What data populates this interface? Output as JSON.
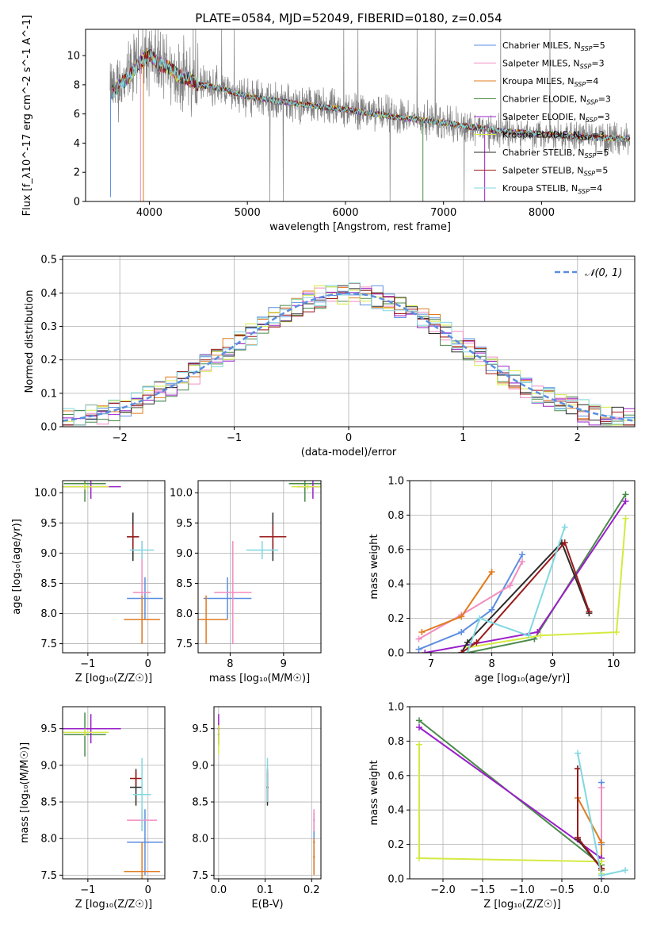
{
  "title": "PLATE=0584, MJD=52049, FIBERID=0180, z=0.054",
  "models": [
    {
      "name": "Chabrier MILES",
      "n": "5",
      "color": "#5b8ee0"
    },
    {
      "name": "Salpeter MILES",
      "n": "3",
      "color": "#f28cc0"
    },
    {
      "name": "Kroupa MILES",
      "n": "4",
      "color": "#e07b20"
    },
    {
      "name": "Chabrier ELODIE",
      "n": "3",
      "color": "#4a8a4a"
    },
    {
      "name": "Salpeter ELODIE",
      "n": "3",
      "color": "#9a20c8"
    },
    {
      "name": "Kroupa ELODIE",
      "n": "3",
      "color": "#d4ea40"
    },
    {
      "name": "Chabrier STELIB",
      "n": "5",
      "color": "#2a2a2a"
    },
    {
      "name": "Salpeter STELIB",
      "n": "5",
      "color": "#9a1a1a"
    },
    {
      "name": "Kroupa STELIB",
      "n": "4",
      "color": "#80d8e0"
    }
  ],
  "chart_data": [
    {
      "id": "spectrum",
      "type": "line",
      "xlabel": "wavelength [Angstrom, rest frame]",
      "ylabel": "Flux [f_λ10^-17 erg cm^-2 s^-1 A^-1]",
      "xlim": [
        3350,
        8950
      ],
      "ylim": [
        0,
        11.8
      ],
      "xticks": [
        4000,
        5000,
        6000,
        7000,
        8000
      ],
      "yticks": [
        0,
        2,
        4,
        6,
        8,
        10
      ],
      "data_color": "#808080",
      "data_range": [
        3600,
        8900
      ],
      "model_continuum": {
        "x": [
          3600,
          3700,
          3800,
          3900,
          4000,
          4100,
          4200,
          4300,
          4400,
          4500,
          4700,
          5000,
          5500,
          6000,
          6500,
          7000,
          7500,
          8000,
          8500,
          8900
        ],
        "y": [
          7.3,
          8.0,
          8.6,
          9.5,
          10.1,
          9.4,
          9.2,
          8.6,
          8.4,
          8.0,
          7.8,
          7.2,
          6.7,
          6.3,
          5.8,
          5.4,
          4.9,
          4.6,
          4.4,
          4.3
        ]
      }
    },
    {
      "id": "residuals",
      "type": "step",
      "xlabel": "(data-model)/error",
      "ylabel": "Normed distribution",
      "xlim": [
        -2.5,
        2.5
      ],
      "ylim": [
        0,
        0.51
      ],
      "xticks": [
        -2,
        -1,
        0,
        1,
        2
      ],
      "yticks": [
        0.0,
        0.1,
        0.2,
        0.3,
        0.4,
        0.5
      ],
      "legend": "𝒩(0, 1)",
      "gaussian": {
        "mean": 0,
        "sigma": 1
      },
      "bin_width": 0.1
    },
    {
      "id": "age-vs-Z",
      "type": "errorbar",
      "xlabel": "Z [log₁₀(Z/Z☉)]",
      "ylabel": "age  [log₁₀(age/yr)]",
      "xlim": [
        -1.42,
        0.28
      ],
      "ylim": [
        7.35,
        10.2
      ],
      "xticks": [
        -1,
        0
      ],
      "yticks": [
        7.5,
        8.0,
        8.5,
        9.0,
        9.5,
        10.0
      ],
      "points": [
        {
          "m": 0,
          "x": -0.05,
          "xerr": 0.3,
          "y": 8.25,
          "yerr": 0.35
        },
        {
          "m": 1,
          "x": -0.1,
          "xerr": 0.15,
          "y": 8.35,
          "yerr": 0.85
        },
        {
          "m": 2,
          "x": -0.1,
          "xerr": 0.3,
          "y": 7.9,
          "yerr": 0.4
        },
        {
          "m": 3,
          "x": -1.05,
          "xerr": 0.35,
          "y": 10.15,
          "yerr": 0.3
        },
        {
          "m": 4,
          "x": -0.95,
          "xerr": 0.5,
          "y": 10.1,
          "yerr": 0.2
        },
        {
          "m": 5,
          "x": -1.05,
          "xerr": 0.4,
          "y": 10.1,
          "yerr": 0.05
        },
        {
          "m": 6,
          "x": -0.25,
          "xerr": 0.1,
          "y": 9.27,
          "yerr": 0.4
        },
        {
          "m": 7,
          "x": -0.25,
          "xerr": 0.1,
          "y": 9.27,
          "yerr": 0.2
        },
        {
          "m": 8,
          "x": -0.1,
          "xerr": 0.2,
          "y": 9.05,
          "yerr": 0.15
        }
      ]
    },
    {
      "id": "age-vs-mass",
      "type": "errorbar",
      "xlabel": "mass [log₁₀(M/M☉)]",
      "ylabel": "",
      "xlim": [
        7.4,
        9.7
      ],
      "ylim": [
        7.35,
        10.2
      ],
      "xticks": [
        8,
        9
      ],
      "yticks": [
        7.5,
        8.0,
        8.5,
        9.0,
        9.5,
        10.0
      ],
      "points": [
        {
          "m": 0,
          "x": 7.95,
          "xerr": 0.45,
          "y": 8.25,
          "yerr": 0.35
        },
        {
          "m": 1,
          "x": 8.05,
          "xerr": 0.35,
          "y": 8.35,
          "yerr": 0.85
        },
        {
          "m": 2,
          "x": 7.55,
          "xerr": 0.4,
          "y": 7.9,
          "yerr": 0.4
        },
        {
          "m": 3,
          "x": 9.4,
          "xerr": 0.3,
          "y": 10.15,
          "yerr": 0.3
        },
        {
          "m": 4,
          "x": 9.55,
          "xerr": 0.3,
          "y": 10.1,
          "yerr": 0.2
        },
        {
          "m": 5,
          "x": 9.45,
          "xerr": 0.3,
          "y": 10.1,
          "yerr": 0.05
        },
        {
          "m": 6,
          "x": 8.8,
          "xerr": 0.25,
          "y": 9.27,
          "yerr": 0.4
        },
        {
          "m": 7,
          "x": 8.8,
          "xerr": 0.25,
          "y": 9.27,
          "yerr": 0.2
        },
        {
          "m": 8,
          "x": 8.6,
          "xerr": 0.3,
          "y": 9.05,
          "yerr": 0.15
        }
      ]
    },
    {
      "id": "weight-vs-age",
      "type": "line",
      "xlabel": "age  [log₁₀(age/yr)]",
      "ylabel": "mass weight",
      "xlim": [
        6.65,
        10.35
      ],
      "ylim": [
        0,
        1.0
      ],
      "xticks": [
        7,
        8,
        9,
        10
      ],
      "yticks": [
        0.0,
        0.2,
        0.4,
        0.6,
        0.8,
        1.0
      ],
      "series": [
        {
          "m": 0,
          "x": [
            6.8,
            7.5,
            8.0,
            8.5
          ],
          "y": [
            0.02,
            0.12,
            0.25,
            0.57
          ]
        },
        {
          "m": 1,
          "x": [
            6.8,
            7.5,
            8.3,
            8.5
          ],
          "y": [
            0.08,
            0.22,
            0.39,
            0.53
          ]
        },
        {
          "m": 2,
          "x": [
            6.85,
            7.5,
            8.0
          ],
          "y": [
            0.12,
            0.21,
            0.47
          ]
        },
        {
          "m": 3,
          "x": [
            7.6,
            8.7,
            10.2
          ],
          "y": [
            0.0,
            0.08,
            0.92
          ]
        },
        {
          "m": 4,
          "x": [
            6.9,
            8.75,
            10.2
          ],
          "y": [
            0.0,
            0.12,
            0.88
          ]
        },
        {
          "m": 5,
          "x": [
            7.6,
            8.8,
            10.05,
            10.2
          ],
          "y": [
            0.03,
            0.1,
            0.12,
            0.78
          ]
        },
        {
          "m": 6,
          "x": [
            7.5,
            7.6,
            9.15,
            9.6
          ],
          "y": [
            0.0,
            0.06,
            0.64,
            0.23
          ]
        },
        {
          "m": 7,
          "x": [
            7.5,
            7.75,
            9.2,
            9.6
          ],
          "y": [
            0.0,
            0.06,
            0.64,
            0.24
          ]
        },
        {
          "m": 8,
          "x": [
            7.6,
            7.8,
            8.6,
            9.2
          ],
          "y": [
            0.0,
            0.2,
            0.1,
            0.73
          ]
        }
      ]
    },
    {
      "id": "mass-vs-Z",
      "type": "errorbar",
      "xlabel": "Z [log₁₀(Z/Z☉)]",
      "ylabel": "mass [log₁₀(M/M☉)]",
      "xlim": [
        -1.42,
        0.28
      ],
      "ylim": [
        7.45,
        9.8
      ],
      "xticks": [
        -1,
        0
      ],
      "yticks": [
        7.5,
        8.0,
        8.5,
        9.0,
        9.5
      ],
      "points": [
        {
          "m": 0,
          "x": -0.05,
          "xerr": 0.3,
          "y": 7.95,
          "yerr": 0.45
        },
        {
          "m": 1,
          "x": -0.1,
          "xerr": 0.25,
          "y": 8.25,
          "yerr": 0.15
        },
        {
          "m": 2,
          "x": -0.1,
          "xerr": 0.3,
          "y": 7.55,
          "yerr": 0.4
        },
        {
          "m": 3,
          "x": -1.05,
          "xerr": 0.35,
          "y": 9.42,
          "yerr": 0.3
        },
        {
          "m": 4,
          "x": -0.95,
          "xerr": 0.5,
          "y": 9.5,
          "yerr": 0.2
        },
        {
          "m": 5,
          "x": -1.05,
          "xerr": 0.4,
          "y": 9.45,
          "yerr": 0.05
        },
        {
          "m": 6,
          "x": -0.2,
          "xerr": 0.1,
          "y": 8.7,
          "yerr": 0.25
        },
        {
          "m": 7,
          "x": -0.2,
          "xerr": 0.1,
          "y": 8.82,
          "yerr": 0.1
        },
        {
          "m": 8,
          "x": -0.1,
          "xerr": 0.15,
          "y": 8.6,
          "yerr": 0.5
        }
      ]
    },
    {
      "id": "mass-vs-ebv",
      "type": "errorbar",
      "xlabel": "E(B-V)",
      "ylabel": "",
      "xlim": [
        -0.01,
        0.22
      ],
      "ylim": [
        7.45,
        9.8
      ],
      "xticks": [
        0.0,
        0.1,
        0.2
      ],
      "yticks": [
        7.5,
        8.0,
        8.5,
        9.0,
        9.5
      ],
      "points": [
        {
          "m": 0,
          "x": 0.205,
          "xerr": 0.002,
          "y": 7.95,
          "yerr": 0.4
        },
        {
          "m": 1,
          "x": 0.205,
          "xerr": 0.002,
          "y": 8.25,
          "yerr": 0.15
        },
        {
          "m": 2,
          "x": 0.205,
          "xerr": 0.002,
          "y": 7.75,
          "yerr": 0.25
        },
        {
          "m": 3,
          "x": 0.0,
          "xerr": 0.002,
          "y": 9.42,
          "yerr": 0.15
        },
        {
          "m": 4,
          "x": 0.0,
          "xerr": 0.002,
          "y": 9.5,
          "yerr": 0.2
        },
        {
          "m": 5,
          "x": 0.0,
          "xerr": 0.002,
          "y": 9.35,
          "yerr": 0.2
        },
        {
          "m": 6,
          "x": 0.105,
          "xerr": 0.002,
          "y": 8.7,
          "yerr": 0.25
        },
        {
          "m": 7,
          "x": 0.105,
          "xerr": 0.002,
          "y": 8.7,
          "yerr": 0.2
        },
        {
          "m": 8,
          "x": 0.105,
          "xerr": 0.002,
          "y": 8.8,
          "yerr": 0.3
        }
      ]
    },
    {
      "id": "weight-vs-Z",
      "type": "line",
      "xlabel": "Z [log₁₀(Z/Z☉)]",
      "ylabel": "mass weight",
      "xlim": [
        -2.42,
        0.42
      ],
      "ylim": [
        0,
        1.0
      ],
      "xticks": [
        -2.0,
        -1.5,
        -1.0,
        -0.5,
        0.0
      ],
      "yticks": [
        0.0,
        0.2,
        0.4,
        0.6,
        0.8,
        1.0
      ],
      "series": [
        {
          "m": 0,
          "x": [
            0.0,
            0.0,
            0.0
          ],
          "y": [
            0.56,
            0.2,
            0.02
          ]
        },
        {
          "m": 1,
          "x": [
            0.0,
            0.0
          ],
          "y": [
            0.53,
            0.02
          ]
        },
        {
          "m": 2,
          "x": [
            -0.3,
            0.0,
            0.0
          ],
          "y": [
            0.47,
            0.21,
            0.05
          ]
        },
        {
          "m": 3,
          "x": [
            -2.3,
            0.0,
            0.0
          ],
          "y": [
            0.92,
            0.08,
            0.0
          ]
        },
        {
          "m": 4,
          "x": [
            -2.3,
            0.0,
            0.0
          ],
          "y": [
            0.88,
            0.12,
            0.0
          ]
        },
        {
          "m": 5,
          "x": [
            -2.3,
            -2.3,
            0.0,
            0.0
          ],
          "y": [
            0.78,
            0.12,
            0.1,
            0.03
          ]
        },
        {
          "m": 6,
          "x": [
            -0.3,
            -0.3,
            0.0
          ],
          "y": [
            0.64,
            0.23,
            0.06
          ]
        },
        {
          "m": 7,
          "x": [
            -0.3,
            -0.3,
            0.0
          ],
          "y": [
            0.64,
            0.24,
            0.06
          ]
        },
        {
          "m": 8,
          "x": [
            -0.3,
            0.0,
            0.3
          ],
          "y": [
            0.73,
            0.02,
            0.05
          ]
        }
      ]
    }
  ]
}
